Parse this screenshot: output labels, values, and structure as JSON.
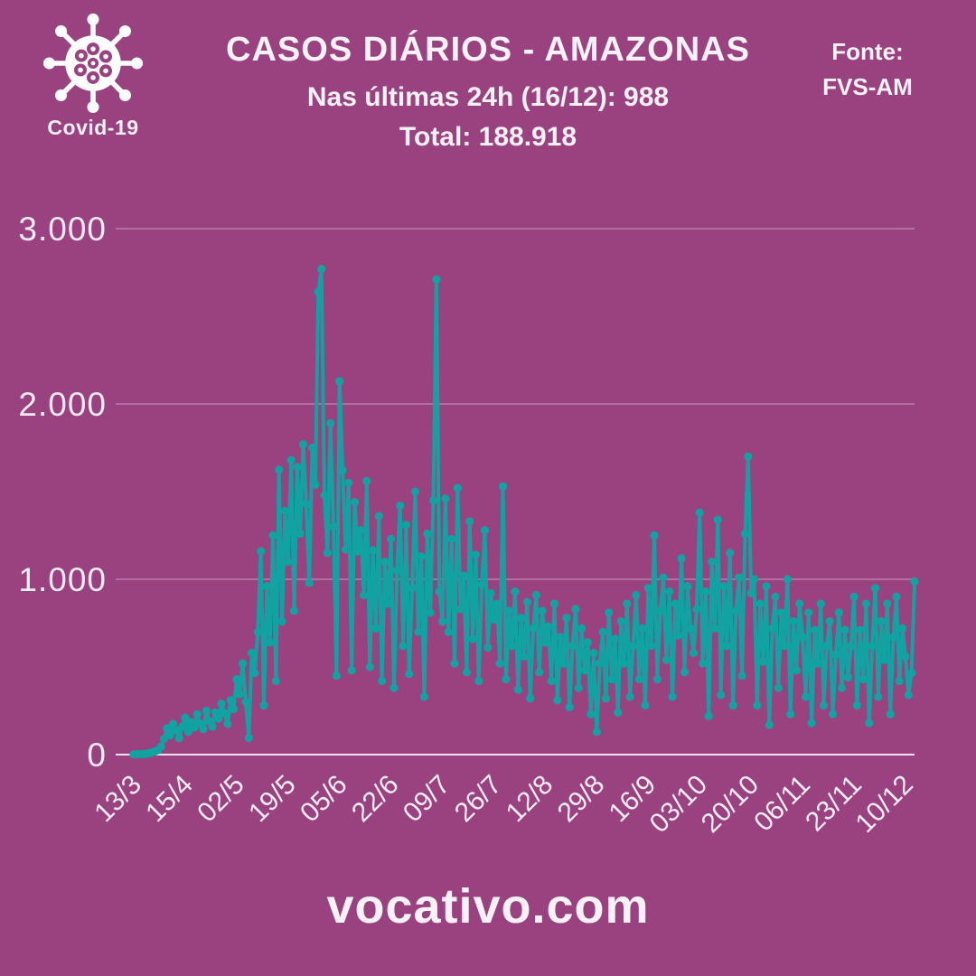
{
  "header": {
    "badge_label": "Covid-19",
    "title": "CASOS DIÁRIOS - AMAZONAS",
    "subtitle": "Nas últimas 24h (16/12): 988",
    "total": "Total: 188.918",
    "source_label": "Fonte:",
    "source_value": "FVS-AM"
  },
  "footer": {
    "site": "vocativo.com"
  },
  "colors": {
    "background": "#9a4180",
    "line": "#11a2a1",
    "text": "#f8f1f6",
    "grid": "rgba(255,255,255,0.32)",
    "axis": "rgba(255,255,255,0.85)"
  },
  "chart_data": {
    "type": "line",
    "title": "CASOS DIÁRIOS - AMAZONAS",
    "xlabel": "",
    "ylabel": "",
    "ylim": [
      0,
      3000
    ],
    "y_ticks": [
      0,
      1000,
      2000,
      3000
    ],
    "y_tick_labels": [
      "0",
      "1.000",
      "2.000",
      "3.000"
    ],
    "grid": true,
    "legend": false,
    "marker": "circle",
    "x_tick_labels": [
      "13/3",
      "15/4",
      "02/5",
      "19/5",
      "05/6",
      "22/6",
      "09/7",
      "26/7",
      "12/8",
      "29/8",
      "16/9",
      "03/10",
      "20/10",
      "06/11",
      "23/11",
      "10/12"
    ],
    "x_tick_every": 17,
    "last_point_label": "988",
    "series": [
      {
        "name": "Casos diários",
        "values": [
          1,
          2,
          3,
          2,
          5,
          8,
          12,
          18,
          25,
          45,
          90,
          150,
          110,
          175,
          140,
          95,
          160,
          210,
          130,
          185,
          155,
          230,
          175,
          145,
          250,
          190,
          160,
          240,
          205,
          290,
          235,
          175,
          310,
          260,
          430,
          345,
          520,
          300,
          95,
          580,
          465,
          700,
          1160,
          280,
          960,
          640,
          1250,
          420,
          1625,
          760,
          1390,
          1100,
          1680,
          820,
          1640,
          1260,
          1770,
          1430,
          980,
          1750,
          1540,
          2640,
          2770,
          1480,
          1150,
          1890,
          1300,
          450,
          2130,
          1620,
          1170,
          1550,
          480,
          1440,
          1160,
          1280,
          910,
          1560,
          500,
          1165,
          720,
          1360,
          420,
          1100,
          860,
          1230,
          380,
          1050,
          1420,
          620,
          1310,
          460,
          950,
          1500,
          700,
          1130,
          330,
          1260,
          810,
          1450,
          2710,
          930,
          760,
          1460,
          700,
          1230,
          520,
          1520,
          830,
          1020,
          470,
          1330,
          660,
          1140,
          420,
          970,
          1280,
          610,
          920,
          770,
          860,
          520,
          1530,
          430,
          820,
          620,
          930,
          370,
          780,
          560,
          870,
          320,
          720,
          910,
          470,
          820,
          640,
          730,
          420,
          860,
          310,
          670,
          520,
          780,
          270,
          620,
          830,
          380,
          720,
          480,
          640,
          230,
          580,
          130,
          520,
          700,
          320,
          810,
          430,
          660,
          240,
          760,
          520,
          860,
          330,
          620,
          910,
          430,
          720,
          280,
          950,
          620,
          1250,
          430,
          820,
          1010,
          540,
          930,
          330,
          860,
          680,
          1120,
          470,
          960,
          720,
          580,
          830,
          1380,
          520,
          930,
          220,
          1100,
          720,
          1340,
          340,
          960,
          620,
          1150,
          280,
          820,
          1010,
          450,
          1260,
          1700,
          920,
          1000,
          280,
          860,
          530,
          960,
          170,
          720,
          900,
          380,
          810,
          620,
          1000,
          230,
          760,
          480,
          860,
          670,
          330,
          810,
          180,
          710,
          520,
          860,
          280,
          620,
          760,
          230,
          570,
          810,
          380,
          710,
          440,
          620,
          900,
          280,
          710,
          430,
          860,
          180,
          620,
          950,
          330,
          760,
          540,
          860,
          230,
          670,
          900,
          420,
          720,
          560,
          340,
          465,
          988
        ]
      }
    ]
  }
}
